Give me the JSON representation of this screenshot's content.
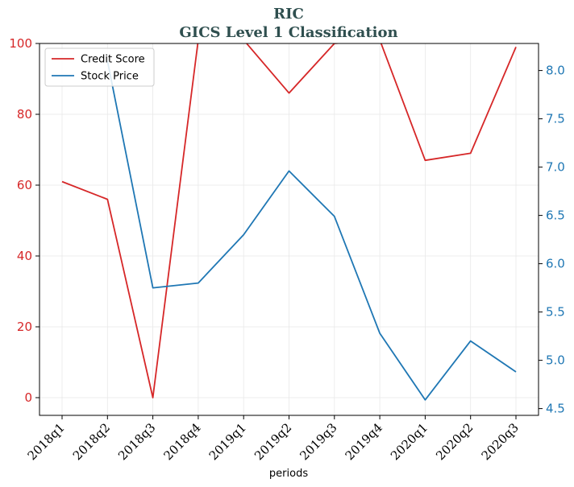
{
  "chart_data": {
    "type": "line",
    "title": "RIC",
    "subtitle": "GICS Level 1 Classification",
    "xlabel": "periods",
    "categories": [
      "2018q1",
      "2018q2",
      "2018q3",
      "2018q4",
      "2019q1",
      "2019q2",
      "2019q3",
      "2019q4",
      "2020q1",
      "2020q2",
      "2020q3"
    ],
    "left_axis": {
      "ylim": [
        -5,
        100
      ],
      "ticks": [
        "0",
        "20",
        "40",
        "60",
        "80",
        "100"
      ],
      "color": "#d62728"
    },
    "right_axis": {
      "ylim": [
        4.43,
        8.28
      ],
      "ticks": [
        "4.5",
        "5.0",
        "5.5",
        "6.0",
        "6.5",
        "7.0",
        "7.5",
        "8.0"
      ],
      "color": "#1f77b4"
    },
    "series": [
      {
        "name": "Credit Score",
        "axis": "left",
        "color": "#d62728",
        "values": [
          61,
          56,
          0,
          101,
          101,
          86,
          100,
          101,
          67,
          69,
          99
        ]
      },
      {
        "name": "Stock Price",
        "axis": "right",
        "color": "#1f77b4",
        "values": [
          null,
          8.1,
          5.75,
          5.8,
          6.3,
          6.96,
          6.49,
          5.28,
          4.59,
          5.2,
          4.88
        ]
      }
    ],
    "grid": true,
    "legend": "top-left",
    "title_color": "#2f4f4f"
  }
}
